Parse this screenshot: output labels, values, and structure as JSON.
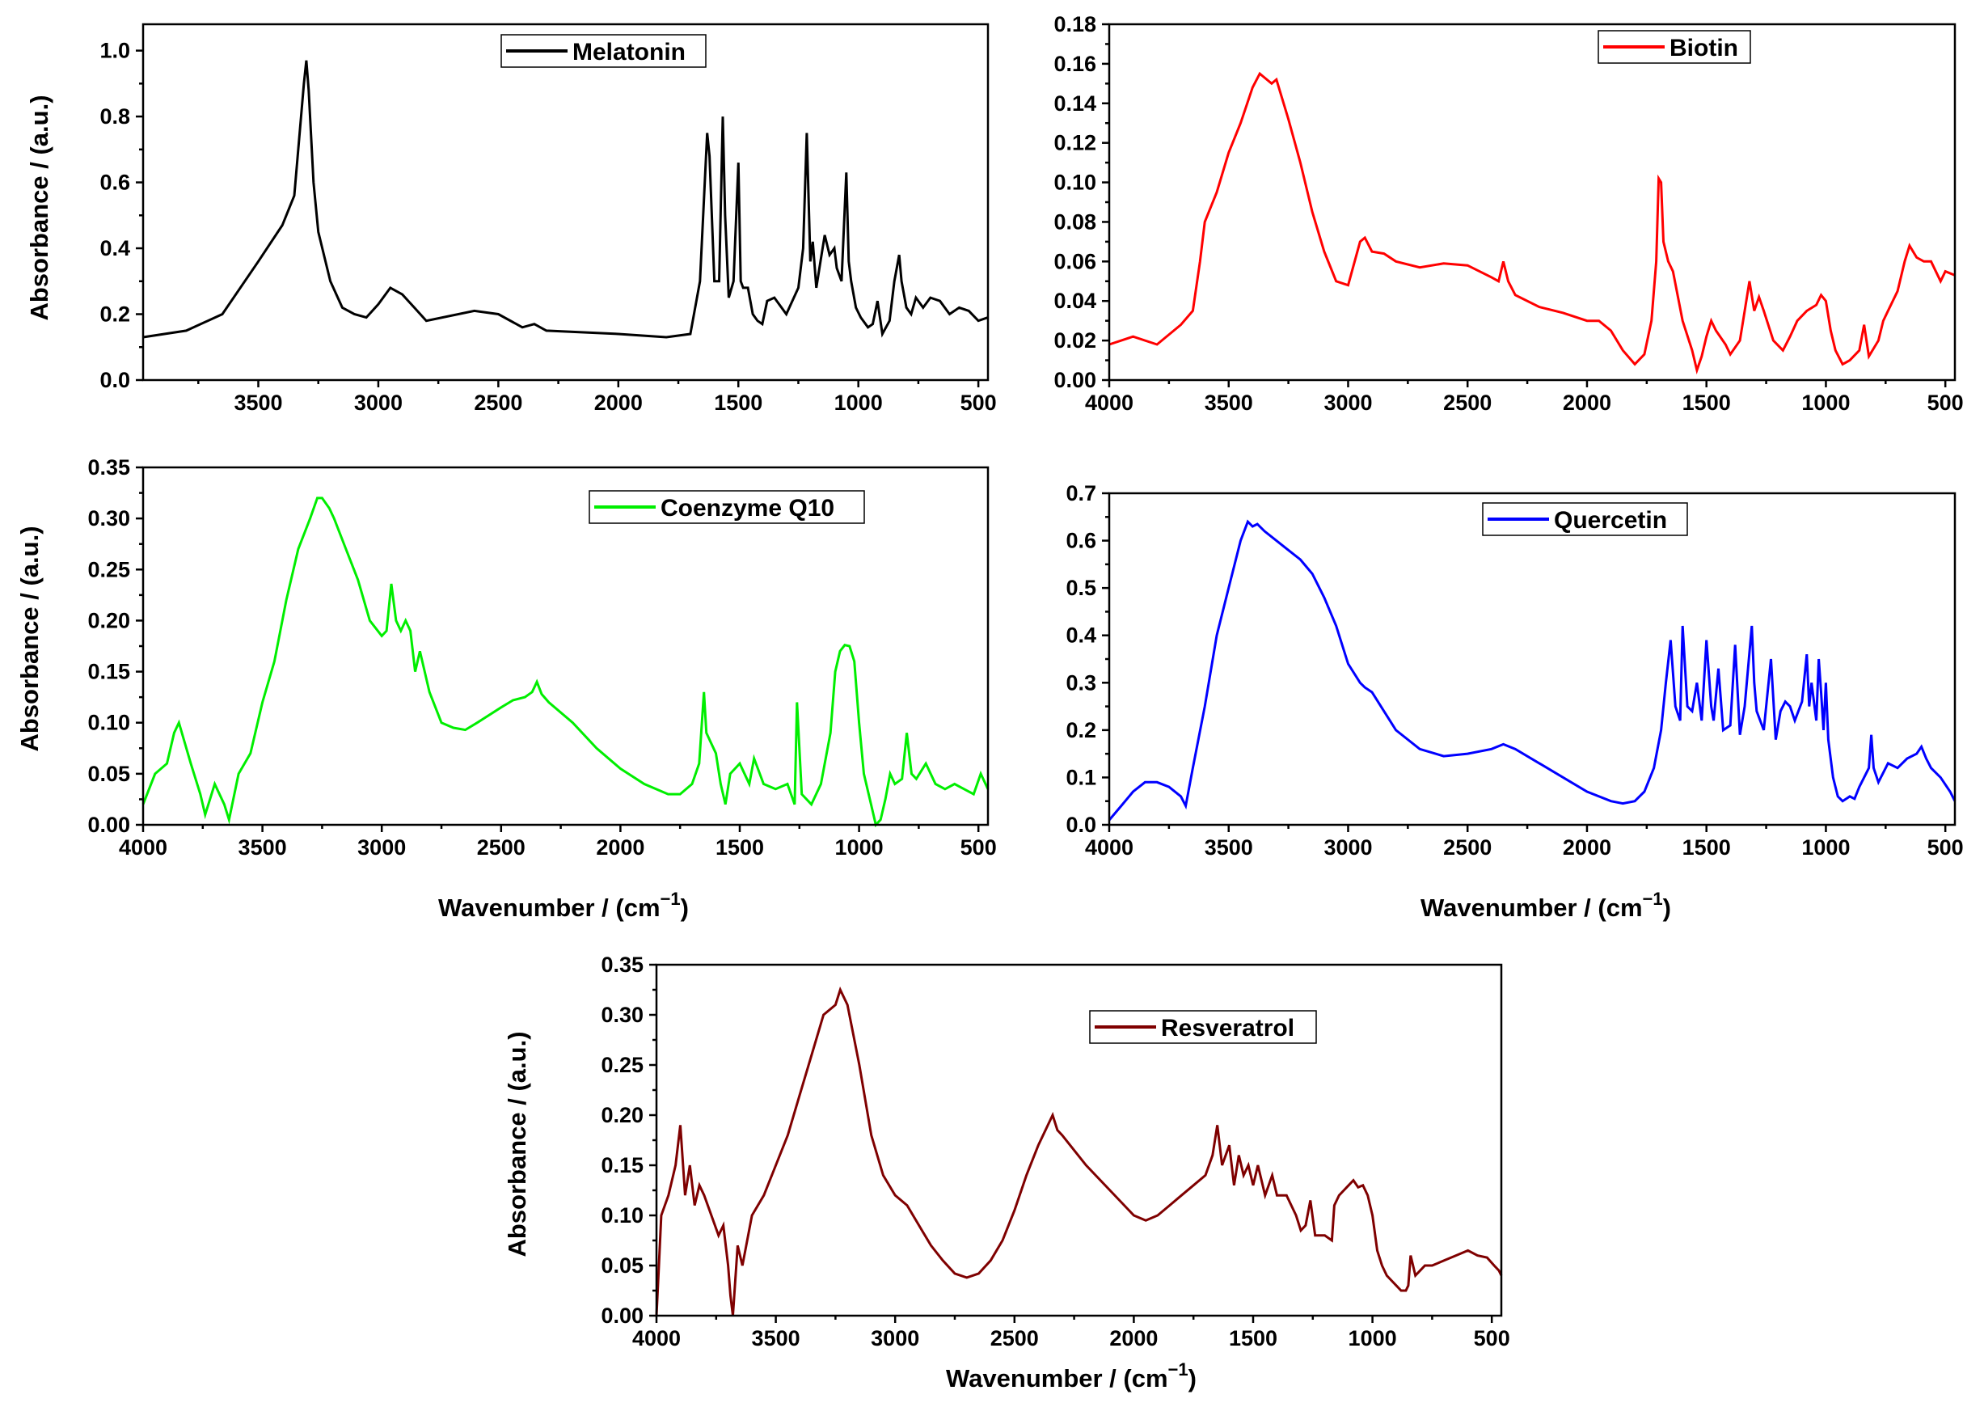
{
  "figure": {
    "xlabel_main": "Wavenumber / (cm",
    "xlabel_exp": "−1",
    "xlabel_close": ")",
    "ylabel": "Absorbance / (a.u.)"
  },
  "chart_data": [
    {
      "id": "melatonin",
      "type": "line",
      "title": "",
      "series_name": "Melatonin",
      "color": "#000000",
      "xlabel": "",
      "ylabel": "Absorbance / (a.u.)",
      "xlim": [
        3980,
        460
      ],
      "ylim": [
        0,
        1.08
      ],
      "xticks": [
        3500,
        3000,
        2500,
        2000,
        1500,
        1000,
        500
      ],
      "xtick_labels": [
        "3500",
        "3000",
        "2500",
        "2000",
        "1500",
        "1000",
        "500"
      ],
      "yticks": [
        0.0,
        0.2,
        0.4,
        0.6,
        0.8,
        1.0
      ],
      "ytick_labels": [
        "0.0",
        "0.2",
        "0.4",
        "0.6",
        "0.8",
        "1.0"
      ],
      "x": [
        3980,
        3800,
        3650,
        3500,
        3400,
        3350,
        3310,
        3300,
        3290,
        3270,
        3250,
        3200,
        3150,
        3100,
        3050,
        3000,
        2950,
        2900,
        2850,
        2800,
        2600,
        2500,
        2400,
        2350,
        2300,
        2000,
        1800,
        1700,
        1660,
        1630,
        1620,
        1600,
        1580,
        1565,
        1555,
        1540,
        1520,
        1500,
        1490,
        1480,
        1460,
        1440,
        1420,
        1400,
        1380,
        1350,
        1300,
        1250,
        1230,
        1215,
        1200,
        1190,
        1175,
        1160,
        1140,
        1120,
        1100,
        1090,
        1070,
        1050,
        1040,
        1030,
        1010,
        990,
        960,
        940,
        920,
        900,
        870,
        850,
        830,
        820,
        800,
        780,
        760,
        730,
        700,
        660,
        620,
        580,
        540,
        500,
        460
      ],
      "y": [
        0.13,
        0.15,
        0.2,
        0.36,
        0.47,
        0.56,
        0.9,
        0.97,
        0.88,
        0.6,
        0.45,
        0.3,
        0.22,
        0.2,
        0.19,
        0.23,
        0.28,
        0.26,
        0.22,
        0.18,
        0.21,
        0.2,
        0.16,
        0.17,
        0.15,
        0.14,
        0.13,
        0.14,
        0.3,
        0.75,
        0.68,
        0.3,
        0.3,
        0.8,
        0.5,
        0.25,
        0.3,
        0.66,
        0.3,
        0.28,
        0.28,
        0.2,
        0.18,
        0.17,
        0.24,
        0.25,
        0.2,
        0.28,
        0.4,
        0.75,
        0.36,
        0.42,
        0.28,
        0.35,
        0.44,
        0.38,
        0.4,
        0.34,
        0.3,
        0.63,
        0.36,
        0.3,
        0.22,
        0.19,
        0.16,
        0.17,
        0.24,
        0.14,
        0.18,
        0.3,
        0.38,
        0.3,
        0.22,
        0.2,
        0.25,
        0.22,
        0.25,
        0.24,
        0.2,
        0.22,
        0.21,
        0.18,
        0.19
      ]
    },
    {
      "id": "biotin",
      "type": "line",
      "title": "",
      "series_name": "Biotin",
      "color": "#ff0000",
      "xlabel": "",
      "ylabel": "",
      "xlim": [
        4000,
        460
      ],
      "ylim": [
        0,
        0.18
      ],
      "xticks": [
        4000,
        3500,
        3000,
        2500,
        2000,
        1500,
        1000,
        500
      ],
      "xtick_labels": [
        "4000",
        "3500",
        "3000",
        "2500",
        "2000",
        "1500",
        "1000",
        "500"
      ],
      "yticks": [
        0.0,
        0.02,
        0.04,
        0.06,
        0.08,
        0.1,
        0.12,
        0.14,
        0.16,
        0.18
      ],
      "ytick_labels": [
        "0.00",
        "0.02",
        "0.04",
        "0.06",
        "0.08",
        "0.10",
        "0.12",
        "0.14",
        "0.16",
        "0.18"
      ],
      "x": [
        4000,
        3900,
        3800,
        3700,
        3650,
        3620,
        3600,
        3550,
        3500,
        3450,
        3400,
        3370,
        3350,
        3320,
        3300,
        3250,
        3200,
        3150,
        3100,
        3050,
        3000,
        2950,
        2930,
        2900,
        2850,
        2800,
        2700,
        2600,
        2500,
        2400,
        2370,
        2350,
        2330,
        2300,
        2200,
        2100,
        2000,
        1950,
        1900,
        1850,
        1800,
        1760,
        1730,
        1710,
        1700,
        1690,
        1680,
        1660,
        1640,
        1600,
        1560,
        1540,
        1520,
        1500,
        1480,
        1460,
        1420,
        1400,
        1360,
        1320,
        1300,
        1280,
        1260,
        1220,
        1180,
        1150,
        1120,
        1080,
        1040,
        1020,
        1000,
        980,
        960,
        930,
        900,
        860,
        840,
        820,
        800,
        780,
        760,
        740,
        700,
        670,
        650,
        620,
        590,
        560,
        520,
        500,
        460
      ],
      "y": [
        0.018,
        0.022,
        0.018,
        0.028,
        0.035,
        0.06,
        0.08,
        0.095,
        0.115,
        0.13,
        0.148,
        0.155,
        0.153,
        0.15,
        0.152,
        0.132,
        0.11,
        0.085,
        0.065,
        0.05,
        0.048,
        0.07,
        0.072,
        0.065,
        0.064,
        0.06,
        0.057,
        0.059,
        0.058,
        0.052,
        0.05,
        0.06,
        0.05,
        0.043,
        0.037,
        0.034,
        0.03,
        0.03,
        0.025,
        0.015,
        0.008,
        0.013,
        0.03,
        0.06,
        0.102,
        0.1,
        0.07,
        0.06,
        0.055,
        0.03,
        0.015,
        0.005,
        0.012,
        0.022,
        0.03,
        0.025,
        0.018,
        0.013,
        0.02,
        0.05,
        0.035,
        0.042,
        0.035,
        0.02,
        0.015,
        0.022,
        0.03,
        0.035,
        0.038,
        0.043,
        0.04,
        0.025,
        0.015,
        0.008,
        0.01,
        0.015,
        0.028,
        0.012,
        0.016,
        0.02,
        0.03,
        0.035,
        0.045,
        0.06,
        0.068,
        0.062,
        0.06,
        0.06,
        0.05,
        0.055,
        0.053
      ]
    },
    {
      "id": "coq10",
      "type": "line",
      "title": "",
      "series_name": "Coenzyme Q10",
      "color": "#00ee00",
      "xlabel": "Wavenumber / (cm−1)",
      "ylabel": "Absorbance / (a.u.)",
      "xlim": [
        4000,
        460
      ],
      "ylim": [
        0,
        0.35
      ],
      "xticks": [
        4000,
        3500,
        3000,
        2500,
        2000,
        1500,
        1000,
        500
      ],
      "xtick_labels": [
        "4000",
        "3500",
        "3000",
        "2500",
        "2000",
        "1500",
        "1000",
        "500"
      ],
      "yticks": [
        0.0,
        0.05,
        0.1,
        0.15,
        0.2,
        0.25,
        0.3,
        0.35
      ],
      "ytick_labels": [
        "0.00",
        "0.05",
        "0.10",
        "0.15",
        "0.20",
        "0.25",
        "0.30",
        "0.35"
      ],
      "x": [
        4000,
        3950,
        3900,
        3870,
        3850,
        3800,
        3760,
        3740,
        3700,
        3660,
        3640,
        3600,
        3550,
        3500,
        3450,
        3400,
        3350,
        3300,
        3270,
        3250,
        3220,
        3200,
        3150,
        3100,
        3050,
        3000,
        2980,
        2960,
        2940,
        2920,
        2900,
        2880,
        2860,
        2840,
        2800,
        2750,
        2700,
        2650,
        2600,
        2500,
        2450,
        2400,
        2370,
        2350,
        2330,
        2300,
        2200,
        2100,
        2000,
        1900,
        1800,
        1750,
        1700,
        1670,
        1650,
        1640,
        1620,
        1600,
        1580,
        1560,
        1540,
        1500,
        1460,
        1440,
        1400,
        1350,
        1300,
        1270,
        1260,
        1240,
        1200,
        1160,
        1120,
        1100,
        1080,
        1060,
        1040,
        1020,
        1000,
        980,
        950,
        930,
        910,
        890,
        870,
        850,
        820,
        800,
        780,
        760,
        720,
        680,
        640,
        600,
        560,
        520,
        490,
        470,
        460
      ],
      "y": [
        0.02,
        0.05,
        0.06,
        0.09,
        0.1,
        0.06,
        0.03,
        0.01,
        0.04,
        0.02,
        0.005,
        0.05,
        0.07,
        0.12,
        0.16,
        0.22,
        0.27,
        0.3,
        0.32,
        0.32,
        0.31,
        0.3,
        0.27,
        0.24,
        0.2,
        0.185,
        0.19,
        0.236,
        0.2,
        0.19,
        0.2,
        0.19,
        0.15,
        0.17,
        0.13,
        0.1,
        0.095,
        0.093,
        0.1,
        0.115,
        0.122,
        0.125,
        0.13,
        0.14,
        0.128,
        0.12,
        0.1,
        0.075,
        0.055,
        0.04,
        0.03,
        0.03,
        0.04,
        0.06,
        0.13,
        0.09,
        0.08,
        0.07,
        0.04,
        0.02,
        0.05,
        0.06,
        0.04,
        0.065,
        0.04,
        0.035,
        0.04,
        0.02,
        0.12,
        0.03,
        0.02,
        0.04,
        0.09,
        0.15,
        0.17,
        0.176,
        0.175,
        0.16,
        0.1,
        0.05,
        0.02,
        0.0,
        0.005,
        0.025,
        0.05,
        0.04,
        0.045,
        0.09,
        0.05,
        0.045,
        0.06,
        0.04,
        0.035,
        0.04,
        0.035,
        0.03,
        0.05,
        0.04,
        0.035
      ]
    },
    {
      "id": "quercetin",
      "type": "line",
      "title": "",
      "series_name": "Quercetin",
      "color": "#0000ff",
      "xlabel": "Wavenumber / (cm−1)",
      "ylabel": "",
      "xlim": [
        4000,
        460
      ],
      "ylim": [
        0,
        0.7
      ],
      "xticks": [
        4000,
        3500,
        3000,
        2500,
        2000,
        1500,
        1000,
        500
      ],
      "xtick_labels": [
        "4000",
        "3500",
        "3000",
        "2500",
        "2000",
        "1500",
        "1000",
        "500"
      ],
      "yticks": [
        0.0,
        0.1,
        0.2,
        0.3,
        0.4,
        0.5,
        0.6,
        0.7
      ],
      "ytick_labels": [
        "0.0",
        "0.1",
        "0.2",
        "0.3",
        "0.4",
        "0.5",
        "0.6",
        "0.7"
      ],
      "x": [
        4000,
        3950,
        3900,
        3850,
        3800,
        3750,
        3700,
        3680,
        3650,
        3600,
        3550,
        3500,
        3450,
        3420,
        3400,
        3380,
        3350,
        3300,
        3250,
        3200,
        3150,
        3100,
        3050,
        3000,
        2950,
        2930,
        2900,
        2850,
        2800,
        2700,
        2600,
        2500,
        2400,
        2350,
        2300,
        2200,
        2100,
        2000,
        1900,
        1850,
        1800,
        1760,
        1720,
        1690,
        1670,
        1650,
        1630,
        1610,
        1600,
        1580,
        1560,
        1540,
        1520,
        1500,
        1480,
        1470,
        1450,
        1430,
        1400,
        1380,
        1360,
        1340,
        1310,
        1300,
        1290,
        1260,
        1230,
        1210,
        1190,
        1170,
        1150,
        1130,
        1100,
        1080,
        1070,
        1060,
        1040,
        1030,
        1020,
        1010,
        1000,
        990,
        970,
        950,
        930,
        900,
        880,
        860,
        840,
        820,
        810,
        800,
        780,
        760,
        740,
        700,
        660,
        620,
        600,
        580,
        560,
        520,
        480,
        460
      ],
      "y": [
        0.01,
        0.04,
        0.07,
        0.09,
        0.09,
        0.08,
        0.06,
        0.04,
        0.12,
        0.25,
        0.4,
        0.5,
        0.6,
        0.64,
        0.63,
        0.635,
        0.62,
        0.6,
        0.58,
        0.56,
        0.53,
        0.48,
        0.42,
        0.34,
        0.3,
        0.29,
        0.28,
        0.24,
        0.2,
        0.16,
        0.145,
        0.15,
        0.16,
        0.17,
        0.16,
        0.13,
        0.1,
        0.07,
        0.05,
        0.045,
        0.05,
        0.07,
        0.12,
        0.2,
        0.3,
        0.39,
        0.25,
        0.22,
        0.42,
        0.25,
        0.24,
        0.3,
        0.22,
        0.39,
        0.25,
        0.22,
        0.33,
        0.2,
        0.21,
        0.38,
        0.19,
        0.25,
        0.42,
        0.3,
        0.24,
        0.2,
        0.35,
        0.18,
        0.24,
        0.26,
        0.25,
        0.22,
        0.26,
        0.36,
        0.25,
        0.3,
        0.22,
        0.35,
        0.28,
        0.2,
        0.3,
        0.18,
        0.1,
        0.06,
        0.05,
        0.06,
        0.055,
        0.08,
        0.1,
        0.12,
        0.19,
        0.12,
        0.09,
        0.11,
        0.13,
        0.12,
        0.14,
        0.15,
        0.165,
        0.14,
        0.12,
        0.1,
        0.07,
        0.05
      ]
    },
    {
      "id": "resveratrol",
      "type": "line",
      "title": "",
      "series_name": "Resveratrol",
      "color": "#7f0000",
      "xlabel": "Wavenumber / (cm−1)",
      "ylabel": "Absorbance / (a.u.)",
      "xlim": [
        4000,
        460
      ],
      "ylim": [
        0,
        0.35
      ],
      "xticks": [
        4000,
        3500,
        3000,
        2500,
        2000,
        1500,
        1000,
        500
      ],
      "xtick_labels": [
        "4000",
        "3500",
        "3000",
        "2500",
        "2000",
        "1500",
        "1000",
        "500"
      ],
      "yticks": [
        0.0,
        0.05,
        0.1,
        0.15,
        0.2,
        0.25,
        0.3,
        0.35
      ],
      "ytick_labels": [
        "0.00",
        "0.05",
        "0.10",
        "0.15",
        "0.20",
        "0.25",
        "0.30",
        "0.35"
      ],
      "x": [
        4000,
        3990,
        3980,
        3950,
        3920,
        3900,
        3880,
        3860,
        3840,
        3820,
        3800,
        3770,
        3740,
        3720,
        3700,
        3690,
        3680,
        3660,
        3640,
        3600,
        3550,
        3500,
        3450,
        3400,
        3350,
        3300,
        3250,
        3230,
        3200,
        3150,
        3100,
        3050,
        3000,
        2950,
        2900,
        2850,
        2800,
        2750,
        2700,
        2650,
        2600,
        2550,
        2500,
        2450,
        2400,
        2360,
        2340,
        2320,
        2300,
        2250,
        2200,
        2100,
        2000,
        1950,
        1900,
        1850,
        1800,
        1750,
        1700,
        1670,
        1650,
        1630,
        1600,
        1580,
        1560,
        1540,
        1520,
        1500,
        1480,
        1450,
        1420,
        1400,
        1360,
        1320,
        1300,
        1280,
        1260,
        1240,
        1200,
        1170,
        1160,
        1140,
        1120,
        1100,
        1080,
        1060,
        1040,
        1020,
        1000,
        980,
        960,
        940,
        920,
        900,
        880,
        860,
        850,
        840,
        820,
        800,
        780,
        750,
        700,
        650,
        600,
        560,
        520,
        490,
        470,
        460
      ],
      "y": [
        0.0,
        0.05,
        0.1,
        0.12,
        0.15,
        0.19,
        0.12,
        0.15,
        0.11,
        0.13,
        0.12,
        0.1,
        0.08,
        0.09,
        0.05,
        0.02,
        0.0,
        0.07,
        0.05,
        0.1,
        0.12,
        0.15,
        0.18,
        0.22,
        0.26,
        0.3,
        0.31,
        0.325,
        0.31,
        0.25,
        0.18,
        0.14,
        0.12,
        0.11,
        0.09,
        0.07,
        0.055,
        0.042,
        0.038,
        0.042,
        0.055,
        0.075,
        0.105,
        0.14,
        0.17,
        0.19,
        0.2,
        0.185,
        0.18,
        0.165,
        0.15,
        0.125,
        0.1,
        0.095,
        0.1,
        0.11,
        0.12,
        0.13,
        0.14,
        0.16,
        0.19,
        0.15,
        0.17,
        0.13,
        0.16,
        0.14,
        0.15,
        0.13,
        0.15,
        0.12,
        0.14,
        0.12,
        0.12,
        0.1,
        0.085,
        0.09,
        0.115,
        0.08,
        0.08,
        0.075,
        0.11,
        0.12,
        0.125,
        0.13,
        0.135,
        0.128,
        0.13,
        0.12,
        0.1,
        0.065,
        0.05,
        0.04,
        0.035,
        0.03,
        0.025,
        0.025,
        0.03,
        0.06,
        0.04,
        0.045,
        0.05,
        0.05,
        0.055,
        0.06,
        0.065,
        0.06,
        0.058,
        0.05,
        0.045,
        0.04
      ]
    }
  ]
}
